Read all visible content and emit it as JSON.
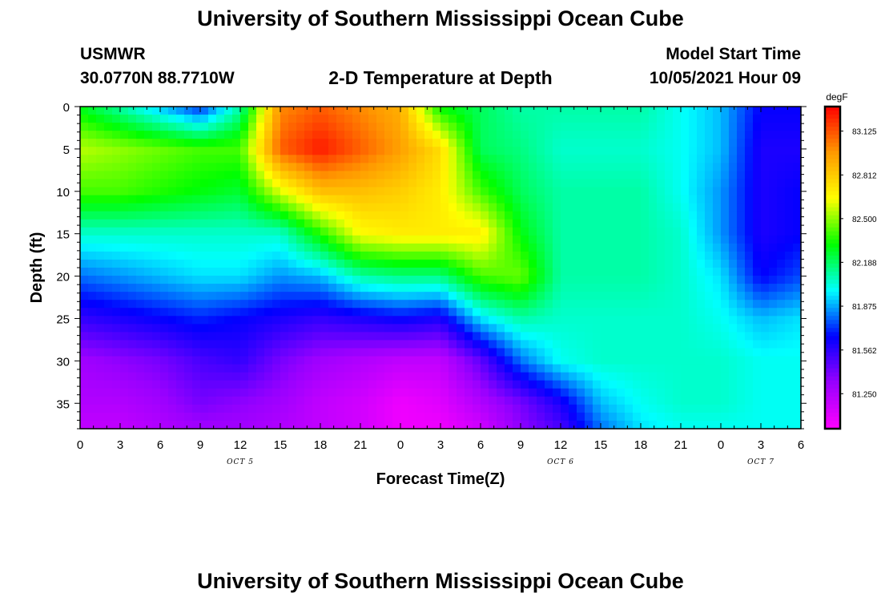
{
  "header": {
    "title": "University of Southern Mississippi Ocean Cube",
    "station": "USMWR",
    "coords": "30.0770N  88.7710W",
    "plot_title": "2-D Temperature at Depth",
    "model_label": "Model Start Time",
    "model_time": "10/05/2021 Hour 09"
  },
  "footer": {
    "title": "University of Southern Mississippi Ocean Cube"
  },
  "colors": {
    "scale": [
      "#ff00ff",
      "#9900ff",
      "#0000ff",
      "#00ffff",
      "#00ff00",
      "#ffff00",
      "#ff9900",
      "#ff0000"
    ]
  },
  "chart_data": {
    "type": "heatmap",
    "title": "2-D Temperature at Depth",
    "xlabel": "Forecast Time(Z)",
    "ylabel": "Depth (ft)",
    "x_ticks": [
      "0",
      "3",
      "6",
      "9",
      "12",
      "15",
      "18",
      "21",
      "0",
      "3",
      "6",
      "9",
      "12",
      "15",
      "18",
      "21",
      "0",
      "3",
      "6"
    ],
    "date_labels": [
      {
        "label": "OCT 5",
        "tick_index": 12
      },
      {
        "label": "OCT 6",
        "tick_index": 36
      },
      {
        "label": "OCT 7",
        "tick_index": 51
      }
    ],
    "x_range_hours": [
      0,
      54
    ],
    "y_ticks": [
      0,
      5,
      10,
      15,
      20,
      25,
      30,
      35
    ],
    "ylim": [
      0,
      38
    ],
    "colorbar": {
      "unit": "degF",
      "ticks": [
        "83.125",
        "82.812",
        "82.500",
        "82.188",
        "81.875",
        "81.562",
        "81.250"
      ],
      "range": [
        81.0,
        83.3
      ]
    },
    "x_hours": [
      0,
      3,
      6,
      9,
      12,
      15,
      18,
      21,
      24,
      27,
      30,
      33,
      36,
      39,
      42,
      45,
      48,
      51,
      54
    ],
    "depths_ft": [
      0,
      5,
      10,
      15,
      20,
      25,
      30,
      35,
      38
    ],
    "temperature": [
      [
        82.28,
        82.1,
        81.9,
        81.7,
        82.1,
        83.0,
        83.1,
        83.0,
        82.9,
        82.3,
        82.2,
        82.1,
        82.1,
        82.1,
        82.1,
        82.0,
        81.9,
        81.65,
        81.65
      ],
      [
        82.55,
        82.5,
        82.45,
        82.4,
        82.4,
        83.1,
        83.25,
        83.1,
        82.95,
        82.75,
        82.2,
        82.15,
        82.05,
        82.05,
        82.05,
        82.0,
        81.9,
        81.6,
        81.6
      ],
      [
        82.4,
        82.4,
        82.35,
        82.3,
        82.25,
        82.6,
        82.85,
        82.85,
        82.8,
        82.7,
        82.4,
        82.2,
        82.1,
        82.1,
        82.1,
        82.0,
        81.85,
        81.6,
        81.65
      ],
      [
        82.05,
        82.05,
        82.05,
        82.05,
        82.05,
        82.05,
        82.35,
        82.65,
        82.7,
        82.7,
        82.7,
        82.3,
        82.1,
        82.1,
        82.1,
        82.05,
        81.85,
        81.6,
        81.65
      ],
      [
        81.8,
        81.85,
        81.9,
        81.95,
        81.95,
        81.85,
        81.9,
        82.1,
        82.15,
        82.15,
        82.4,
        82.45,
        82.1,
        82.1,
        82.1,
        82.05,
        81.95,
        81.65,
        81.75
      ],
      [
        81.55,
        81.6,
        81.65,
        81.7,
        81.65,
        81.6,
        81.55,
        81.6,
        81.65,
        81.6,
        81.95,
        82.1,
        82.05,
        82.05,
        82.05,
        82.05,
        82.0,
        81.9,
        81.95
      ],
      [
        81.3,
        81.35,
        81.4,
        81.5,
        81.55,
        81.4,
        81.3,
        81.25,
        81.2,
        81.2,
        81.45,
        81.8,
        82.0,
        82.05,
        82.05,
        82.05,
        82.05,
        82.0,
        82.0
      ],
      [
        81.25,
        81.25,
        81.3,
        81.4,
        81.35,
        81.3,
        81.2,
        81.15,
        81.05,
        81.1,
        81.25,
        81.4,
        81.6,
        81.9,
        82.0,
        82.05,
        82.05,
        82.0,
        82.0
      ],
      [
        81.2,
        81.2,
        81.25,
        81.3,
        81.3,
        81.25,
        81.2,
        81.15,
        81.05,
        81.05,
        81.15,
        81.35,
        81.5,
        81.8,
        81.95,
        82.0,
        82.0,
        82.0,
        82.0
      ]
    ]
  }
}
